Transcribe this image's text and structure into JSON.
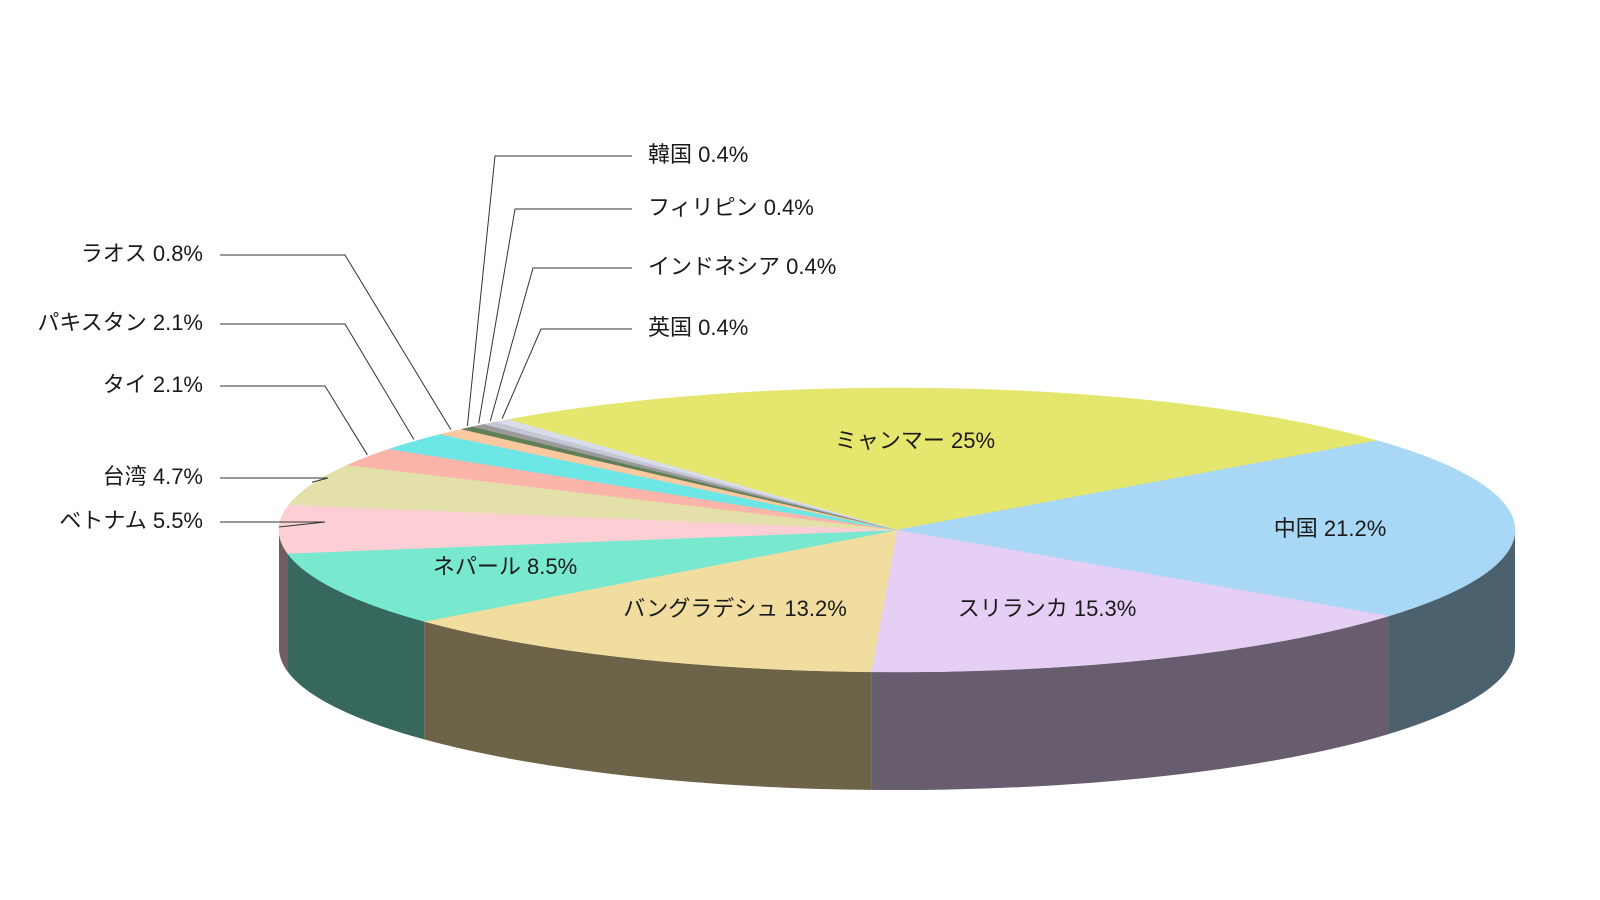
{
  "chart_data": {
    "type": "pie3d",
    "categories": [
      "ミャンマー",
      "中国",
      "スリランカ",
      "バングラデシュ",
      "ネパール",
      "ベトナム",
      "台湾",
      "タイ",
      "パキスタン",
      "ラオス",
      "韓国",
      "フィリピン",
      "インドネシア",
      "英国"
    ],
    "values": [
      25,
      21.2,
      15.3,
      13.2,
      8.5,
      5.5,
      4.7,
      2.1,
      2.1,
      0.8,
      0.4,
      0.4,
      0.4,
      0.4
    ],
    "value_labels": [
      "25%",
      "21.2%",
      "15.3%",
      "13.2%",
      "8.5%",
      "5.5%",
      "4.7%",
      "2.1%",
      "2.1%",
      "0.8%",
      "0.4%",
      "0.4%",
      "0.4%",
      "0.4%"
    ],
    "colors": [
      "#e5e66e",
      "#a8d8f5",
      "#e5cff5",
      "#f0dd9f",
      "#78e8cf",
      "#fccfd4",
      "#e3e0a9",
      "#fbb4aa",
      "#6de6e6",
      "#fbc8a0",
      "#5f7f55",
      "#9a9a9a",
      "#c4c6d6",
      "#d9dde9"
    ]
  }
}
